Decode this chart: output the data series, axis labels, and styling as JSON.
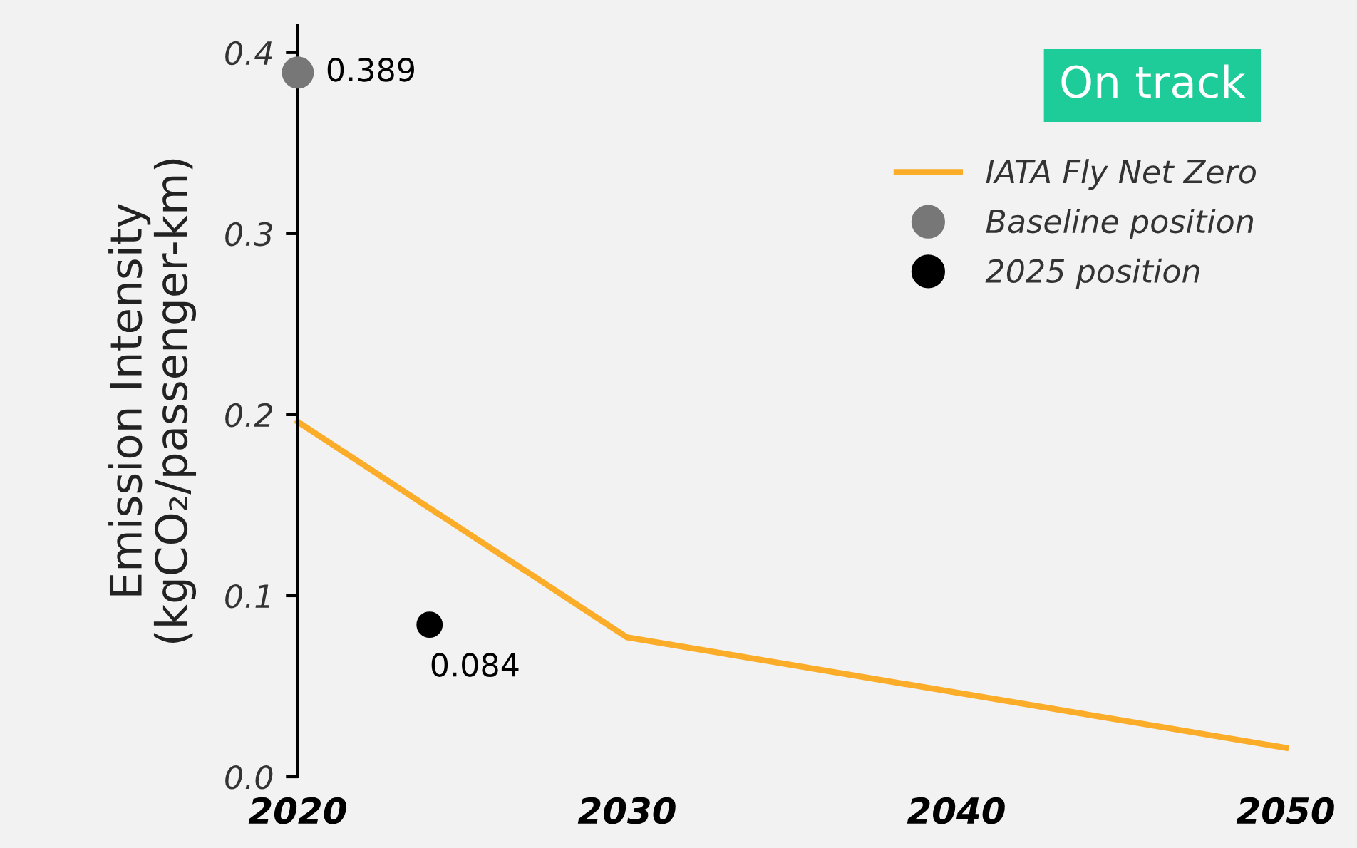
{
  "chart_data": {
    "type": "line",
    "ylabel": "Emission Intensity\n(kgCO₂/passenger-km)",
    "annotations": [
      "On track"
    ],
    "series": [
      {
        "name": "IATA Fly Net Zero",
        "color": "#fbad2a",
        "x": [
          2020,
          2030,
          2050
        ],
        "values": [
          0.196,
          0.077,
          0.016
        ]
      },
      {
        "name": "Baseline position",
        "type": "scatter",
        "color": "#777777",
        "x": [
          2020
        ],
        "values": [
          0.389
        ],
        "value_labels": [
          "0.389"
        ]
      },
      {
        "name": "2025 position",
        "type": "scatter",
        "color": "#000000",
        "x": [
          2024
        ],
        "values": [
          0.084
        ],
        "value_labels": [
          "0.084"
        ]
      }
    ],
    "xlim": [
      2020,
      2050
    ],
    "xticks": [
      2020,
      2030,
      2040,
      2050
    ],
    "ylim": [
      0,
      0.415
    ],
    "yticks": [
      {
        "value": 0,
        "label": "0.0"
      },
      0.1,
      0.2,
      0.3,
      0.4
    ],
    "grid": false,
    "legend": "top right"
  }
}
